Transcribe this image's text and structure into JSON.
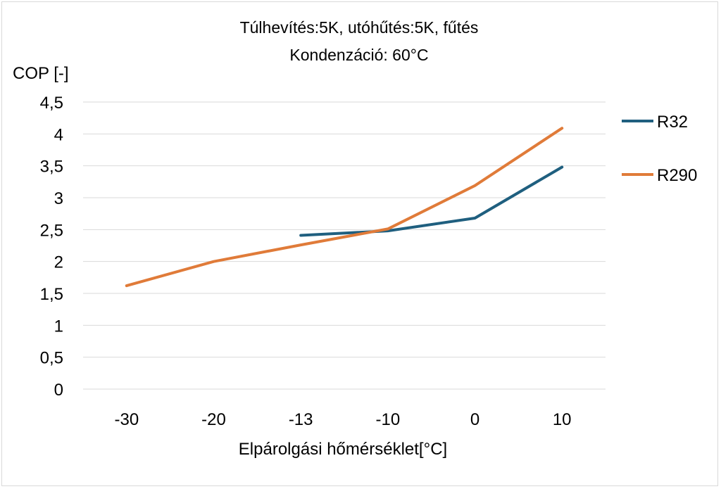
{
  "chart_data": {
    "type": "line",
    "title": "Túlhevítés:5K, utóhűtés:5K, fűtés",
    "subtitle": "Kondenzáció: 60°C",
    "xlabel": "Elpárolgási hőmérséklet[°C]",
    "ylabel": "COP [-]",
    "categories": [
      "-30",
      "-20",
      "-13",
      "-10",
      "0",
      "10"
    ],
    "ylim": [
      0,
      4.5
    ],
    "yticks": [
      0,
      0.5,
      1,
      1.5,
      2,
      2.5,
      3,
      3.5,
      4,
      4.5
    ],
    "ytick_labels": [
      "0",
      "0,5",
      "1",
      "1,5",
      "2",
      "2,5",
      "3",
      "3,5",
      "4",
      "4,5"
    ],
    "grid": true,
    "legend_position": "right",
    "series": [
      {
        "name": "R32",
        "color": "#1f5f7f",
        "values": [
          null,
          null,
          2.41,
          2.48,
          2.68,
          3.48
        ]
      },
      {
        "name": "R290",
        "color": "#e07b39",
        "values": [
          1.62,
          2.0,
          2.26,
          2.51,
          3.19,
          4.09
        ]
      }
    ]
  }
}
